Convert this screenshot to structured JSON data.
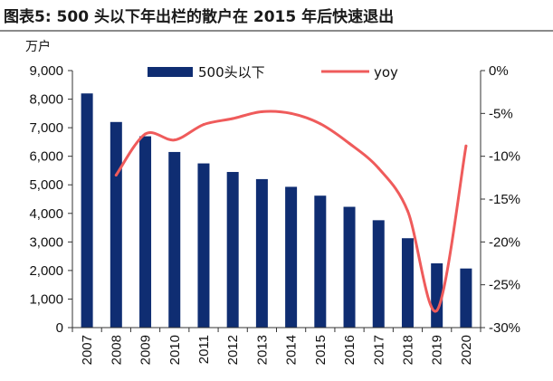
{
  "figure": {
    "title": "图表5:   500 头以下年出栏的散户在 2015 年后快速退出",
    "left_unit": "万户"
  },
  "colors": {
    "bar": "#0f2d72",
    "line": "#ef5b5b",
    "axis": "#333333"
  },
  "chart_data": {
    "type": "bar",
    "categories": [
      "2007",
      "2008",
      "2009",
      "2010",
      "2011",
      "2012",
      "2013",
      "2014",
      "2015",
      "2016",
      "2017",
      "2018",
      "2019",
      "2020"
    ],
    "series": [
      {
        "name": "500头以下",
        "type": "bar",
        "axis": "left",
        "values": [
          8200,
          7200,
          6700,
          6150,
          5750,
          5450,
          5200,
          4930,
          4620,
          4230,
          3760,
          3130,
          2250,
          2070
        ]
      },
      {
        "name": "yoy",
        "type": "line",
        "axis": "right",
        "values": [
          null,
          -12.2,
          -7.4,
          -8.1,
          -6.3,
          -5.6,
          -4.8,
          -5.0,
          -6.2,
          -8.5,
          -11.4,
          -16.4,
          -28.0,
          -8.8
        ]
      }
    ],
    "y_left": {
      "lim": [
        0,
        9000
      ],
      "ticks": [
        "0",
        "1,000",
        "2,000",
        "3,000",
        "4,000",
        "5,000",
        "6,000",
        "7,000",
        "8,000",
        "9,000"
      ]
    },
    "y_right": {
      "lim": [
        -30,
        0
      ],
      "ticks": [
        "0%",
        "-5%",
        "-10%",
        "-15%",
        "-20%",
        "-25%",
        "-30%"
      ]
    },
    "legend": {
      "placement": "top"
    }
  }
}
